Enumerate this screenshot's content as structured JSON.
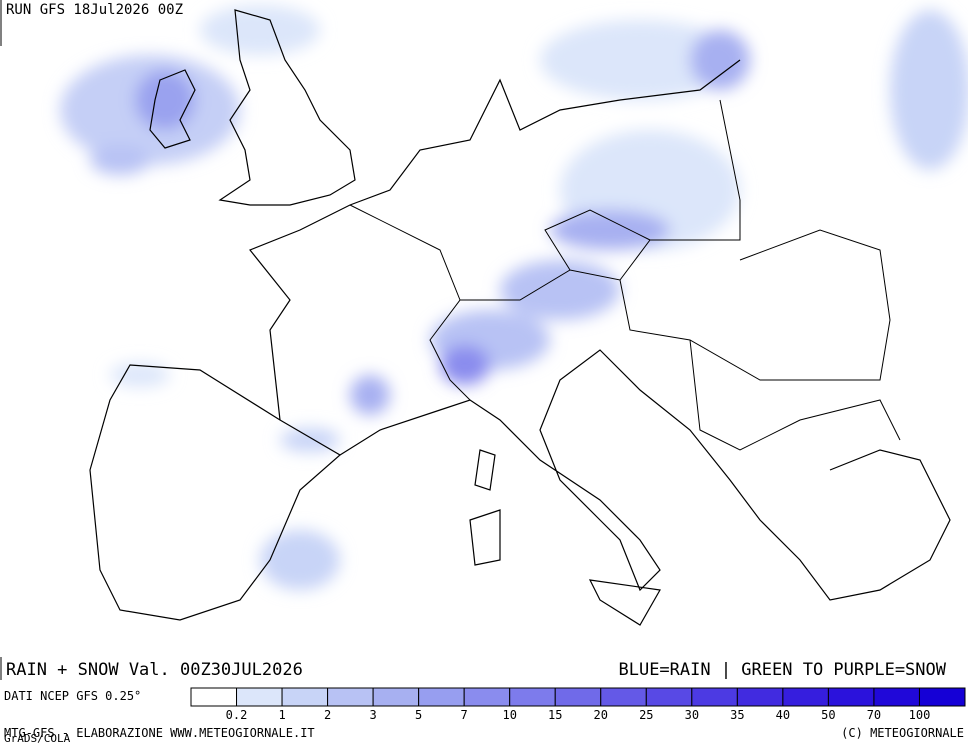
{
  "header": {
    "run": "RUN GFS 18Jul2026 00Z"
  },
  "footer": {
    "title": "RAIN + SNOW Val. 00Z30JUL2026",
    "key": "BLUE=RAIN | GREEN TO PURPLE=SNOW",
    "source": "DATI NCEP GFS 0.25°",
    "credit": "MTG-GFS - ELABORAZIONE WWW.METEOGIORNALE.IT",
    "grads": "GrADS/COLA",
    "copyright": "(C) METEOGIORNALE"
  },
  "legend": {
    "levels": [
      0.2,
      1,
      2,
      3,
      5,
      7,
      10,
      15,
      20,
      25,
      30,
      35,
      40,
      50,
      70,
      100
    ],
    "colors": [
      "#ffffff",
      "#dce6fa",
      "#c8d4f7",
      "#b8c2f4",
      "#a7b0f1",
      "#979ef0",
      "#8a8cee",
      "#7d7bec",
      "#706ae9",
      "#6459e7",
      "#5849e5",
      "#4c3ae3",
      "#412be0",
      "#361ede",
      "#2b12dc",
      "#2008d9",
      "#1500d6"
    ]
  }
}
